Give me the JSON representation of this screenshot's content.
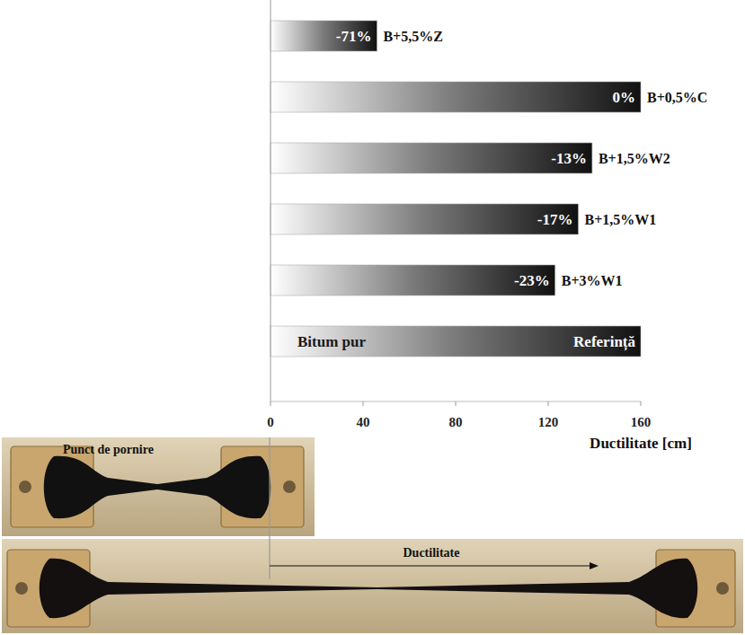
{
  "chart_data": {
    "type": "bar",
    "orientation": "horizontal",
    "categories": [
      "B+5,5%Z",
      "B+0,5%C",
      "B+1,5%W2",
      "B+1,5%W1",
      "B+3%W1",
      "Bitum pur"
    ],
    "values": [
      46,
      160,
      139,
      133,
      123,
      160
    ],
    "annotations": [
      "-71%",
      "0%",
      "-13%",
      "-17%",
      "-23%",
      "Referință"
    ],
    "x_label": "Ductilitate [cm]",
    "xlim": [
      0,
      160
    ],
    "xticks": [
      0,
      40,
      80,
      120,
      160
    ],
    "grid": false,
    "color": "#111111"
  },
  "photos": {
    "start_label": "Punct de pornire",
    "ductility_label": "Ductilitate"
  }
}
